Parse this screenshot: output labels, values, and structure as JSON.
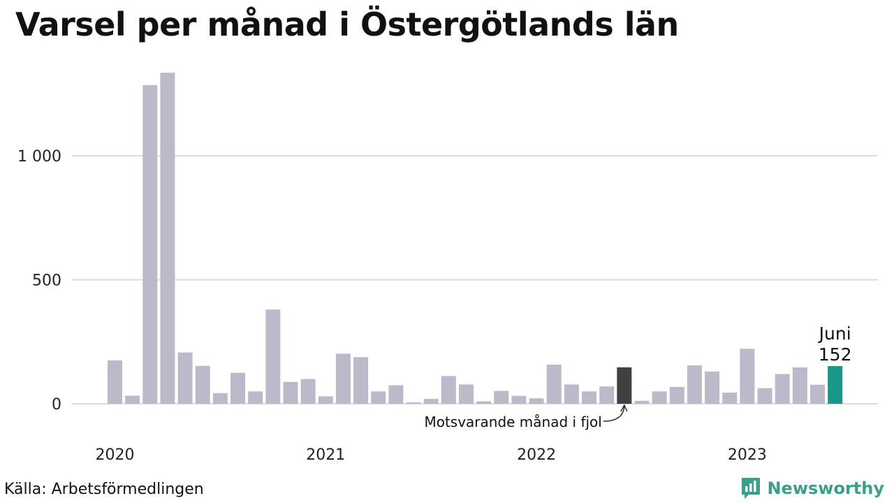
{
  "title": "Varsel per månad i Östergötlands län",
  "source": "Källa: Arbetsförmedlingen",
  "brand": {
    "name": "Newsworthy",
    "icon": "bar-chart-icon"
  },
  "colors": {
    "bar": "#bcbaca",
    "comparison": "#404040",
    "current": "#17978a",
    "grid": "#dcdcdc",
    "brand": "#3d9e8c"
  },
  "chart_data": {
    "type": "bar",
    "title": "Varsel per månad i Östergötlands län",
    "xlabel": "",
    "ylabel": "",
    "ylim": [
      0,
      1400
    ],
    "grid": true,
    "yticks": [
      {
        "value": 0,
        "label": "0"
      },
      {
        "value": 500,
        "label": "500"
      },
      {
        "value": 1000,
        "label": "1 000"
      }
    ],
    "xticks": [
      {
        "month_index": 0,
        "label": "2020"
      },
      {
        "month_index": 12,
        "label": "2021"
      },
      {
        "month_index": 24,
        "label": "2022"
      },
      {
        "month_index": 36,
        "label": "2023"
      }
    ],
    "start_month": "2020-01",
    "values": [
      175,
      33,
      1285,
      1335,
      207,
      153,
      43,
      125,
      50,
      380,
      88,
      100,
      30,
      202,
      188,
      50,
      75,
      6,
      20,
      112,
      78,
      10,
      52,
      32,
      22,
      158,
      78,
      50,
      70,
      147,
      12,
      50,
      68,
      155,
      130,
      45,
      222,
      63,
      120,
      147,
      77,
      152
    ],
    "highlight_comparison_index": 29,
    "highlight_current_index": 41,
    "annotations": {
      "current": {
        "month": "Juni",
        "value": "152"
      },
      "comparison": "Motsvarande månad i fjol"
    }
  }
}
